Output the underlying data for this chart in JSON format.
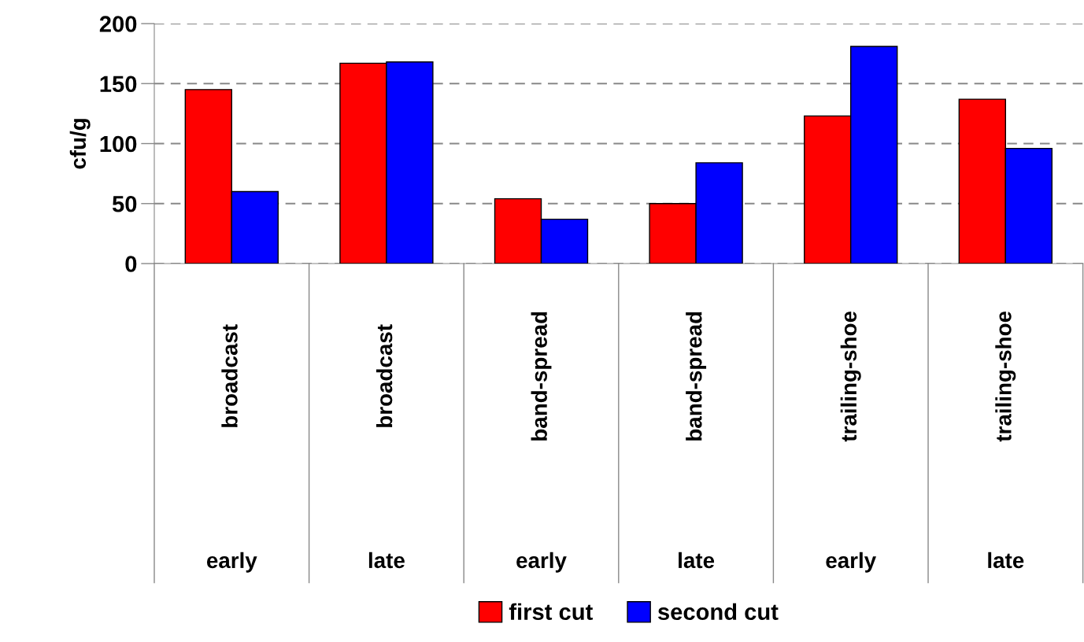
{
  "chart_data": {
    "type": "bar",
    "ylabel": "cfu/g",
    "categories": [
      "broadcast\nearly",
      "broadcast\nlate",
      "band-spread\nearly",
      "band-spread\nlate",
      "trailing-shoe\nearly",
      "trailing-shoe\nlate"
    ],
    "series": [
      {
        "name": "first cut",
        "color": "#ff0000",
        "values": [
          145,
          167,
          54,
          50,
          123,
          137
        ]
      },
      {
        "name": "second cut",
        "color": "#0000ff",
        "values": [
          60,
          168,
          37,
          84,
          181,
          96
        ]
      }
    ],
    "ylim": [
      0,
      200
    ],
    "yticks": [
      0,
      50,
      100,
      150,
      200
    ],
    "grid": "y",
    "legend": "bottom"
  }
}
